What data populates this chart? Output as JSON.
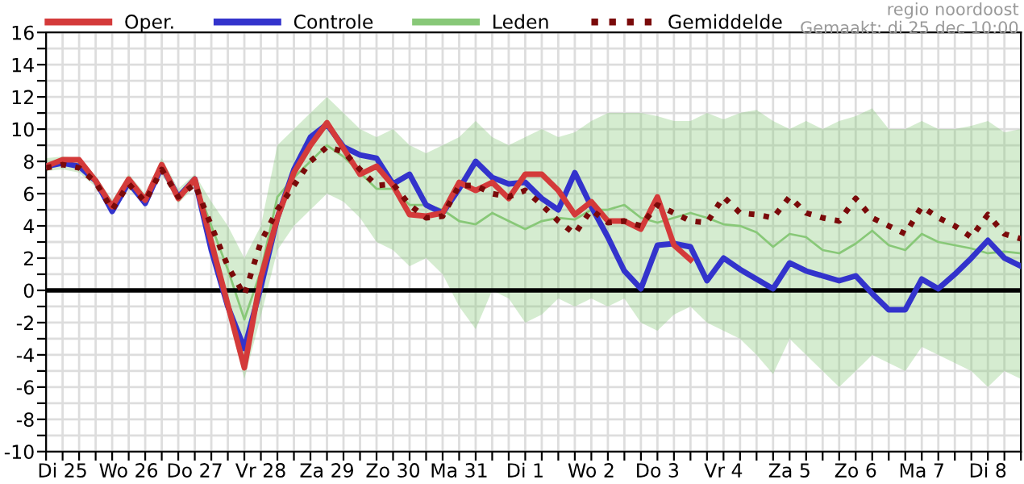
{
  "chart_data": {
    "type": "line",
    "annotations": [
      "regio noordoost",
      "Gemaakt: di 25 dec 10:00"
    ],
    "categories": [
      null,
      "Di 25",
      null,
      null,
      null,
      "Wo 26",
      null,
      null,
      null,
      "Do 27",
      null,
      null,
      null,
      "Vr 28",
      null,
      null,
      null,
      "Za 29",
      null,
      null,
      null,
      "Zo 30",
      null,
      null,
      null,
      "Ma 31",
      null,
      null,
      null,
      "Di 1",
      null,
      null,
      null,
      "Wo 2",
      null,
      null,
      null,
      "Do 3",
      null,
      null,
      null,
      "Vr 4",
      null,
      null,
      null,
      "Za 5",
      null,
      null,
      null,
      "Zo 6",
      null,
      null,
      null,
      "Ma 7",
      null,
      null,
      null,
      "Di 8",
      null,
      null
    ],
    "ylim": [
      -10,
      16
    ],
    "yticks": [
      -10,
      {
        "value": -9,
        "label": null
      },
      -8,
      {
        "value": -7,
        "label": null
      },
      -6,
      {
        "value": -5,
        "label": null
      },
      -4,
      {
        "value": -3,
        "label": null
      },
      -2,
      {
        "value": -1,
        "label": null
      },
      0,
      {
        "value": 1,
        "label": null
      },
      2,
      {
        "value": 3,
        "label": null
      },
      4,
      {
        "value": 5,
        "label": null
      },
      6,
      {
        "value": 7,
        "label": null
      },
      8,
      {
        "value": 9,
        "label": null
      },
      10,
      {
        "value": 11,
        "label": null
      },
      12,
      {
        "value": 13,
        "label": null
      },
      14,
      {
        "value": 15,
        "label": null
      },
      16
    ],
    "grid": true,
    "legend": "top",
    "marker": "none",
    "ref_lines": [
      {
        "axis": "y",
        "value": 0,
        "color": "#000000"
      }
    ],
    "series": [
      {
        "name": "Oper.",
        "color": "#d43a3a",
        "line_style": "solid",
        "values": [
          7.7,
          8.1,
          8.1,
          6.8,
          5.2,
          6.9,
          5.6,
          7.8,
          5.7,
          6.9,
          3.0,
          -0.9,
          -4.8,
          0.8,
          4.5,
          7.3,
          9.0,
          10.4,
          8.8,
          7.2,
          7.7,
          6.5,
          4.7,
          4.6,
          4.8,
          6.7,
          6.2,
          6.7,
          5.7,
          7.2,
          7.2,
          6.2,
          4.7,
          5.5,
          4.3,
          4.3,
          3.8,
          5.8,
          2.8,
          1.9,
          null,
          null,
          null,
          null,
          null,
          null,
          null,
          null,
          null,
          null,
          null,
          null,
          null,
          null,
          null,
          null,
          null,
          null,
          null,
          null
        ]
      },
      {
        "name": "Controle",
        "color": "#3333cc",
        "line_style": "solid",
        "values": [
          7.7,
          7.9,
          7.7,
          6.8,
          4.9,
          6.7,
          5.4,
          7.7,
          5.8,
          6.9,
          2.5,
          -1.0,
          -3.6,
          0.2,
          4.5,
          7.5,
          9.5,
          10.3,
          8.9,
          8.4,
          8.2,
          6.6,
          7.2,
          5.3,
          4.8,
          6.3,
          8.0,
          7.0,
          6.6,
          6.7,
          5.7,
          5.0,
          7.3,
          5.2,
          3.3,
          1.2,
          0.1,
          2.8,
          2.9,
          2.7,
          0.6,
          2.0,
          1.3,
          0.7,
          0.1,
          1.7,
          1.2,
          0.9,
          0.6,
          0.9,
          -0.2,
          -1.2,
          -1.2,
          0.7,
          0.1,
          1.0,
          2.0,
          3.1,
          2.0,
          1.5
        ]
      },
      {
        "name": "Leden",
        "color": "#88c878",
        "line_style": "solid",
        "values": [
          7.8,
          7.9,
          7.8,
          6.8,
          5.2,
          6.8,
          5.6,
          7.7,
          5.9,
          6.8,
          4.0,
          1.3,
          -1.8,
          1.2,
          5.8,
          7.0,
          8.0,
          9.0,
          8.3,
          7.3,
          6.3,
          6.3,
          5.3,
          5.3,
          5.0,
          4.3,
          4.1,
          4.8,
          4.3,
          3.8,
          4.3,
          4.5,
          4.4,
          5.0,
          5.0,
          5.3,
          4.5,
          4.2,
          4.5,
          4.8,
          4.5,
          4.1,
          4.0,
          3.6,
          2.7,
          3.5,
          3.3,
          2.5,
          2.3,
          2.9,
          3.7,
          2.8,
          2.5,
          3.5,
          3.0,
          2.8,
          2.6,
          2.3,
          2.4,
          2.3
        ],
        "lower": [
          7.4,
          7.5,
          7.3,
          6.4,
          4.7,
          6.3,
          5.2,
          7.2,
          5.4,
          6.4,
          2.5,
          -1.5,
          -5.5,
          -1.6,
          2.5,
          4.0,
          5.0,
          6.0,
          5.5,
          4.5,
          3.0,
          2.5,
          1.5,
          2.0,
          1.0,
          -1.0,
          -2.4,
          0,
          -0.5,
          -2.0,
          -1.5,
          -0.5,
          -1.0,
          -0.5,
          -1.0,
          -0.5,
          -2.0,
          -2.5,
          -1.5,
          -1.0,
          -2.0,
          -2.5,
          -3.0,
          -4.0,
          -5.2,
          -3.0,
          -4.0,
          -5.0,
          -6.0,
          -5.0,
          -4.0,
          -4.5,
          -5.0,
          -3.5,
          -4.0,
          -4.5,
          -5.0,
          -6.0,
          -5.0,
          -5.5
        ],
        "upper": [
          8.2,
          8.3,
          8.2,
          7.1,
          5.6,
          7.2,
          6.0,
          8.2,
          6.3,
          7.2,
          5.5,
          4.0,
          2.0,
          4.0,
          9.0,
          10.0,
          11.0,
          12.0,
          11.0,
          10.0,
          9.5,
          10.0,
          9.0,
          8.5,
          9.0,
          9.5,
          10.5,
          9.5,
          9.0,
          9.5,
          10.0,
          9.5,
          9.8,
          10.5,
          11.0,
          11.0,
          11.0,
          10.8,
          10.5,
          10.5,
          11.0,
          10.6,
          11.0,
          11.2,
          10.5,
          10.0,
          10.5,
          10.0,
          10.5,
          10.8,
          11.3,
          10.0,
          10.0,
          10.5,
          10.0,
          10.0,
          10.2,
          10.5,
          9.8,
          10.0
        ]
      },
      {
        "name": "Gemiddelde",
        "color": "#7a0a0a",
        "line_style": "dotted",
        "values": [
          7.6,
          7.8,
          7.6,
          6.7,
          5.0,
          6.6,
          5.5,
          7.5,
          5.8,
          6.6,
          4.0,
          1.5,
          -0.3,
          3.0,
          5.0,
          6.5,
          8.0,
          8.9,
          8.6,
          7.5,
          6.5,
          6.6,
          5.3,
          4.5,
          4.6,
          6.5,
          6.5,
          6.0,
          5.8,
          6.2,
          5.3,
          4.3,
          3.5,
          5.0,
          4.2,
          4.3,
          4.0,
          5.3,
          4.8,
          4.3,
          4.2,
          5.8,
          4.8,
          4.7,
          4.5,
          5.8,
          4.8,
          4.5,
          4.3,
          5.7,
          4.5,
          4.0,
          3.5,
          5.2,
          4.5,
          4.0,
          3.3,
          4.7,
          3.5,
          3.2
        ]
      }
    ]
  }
}
